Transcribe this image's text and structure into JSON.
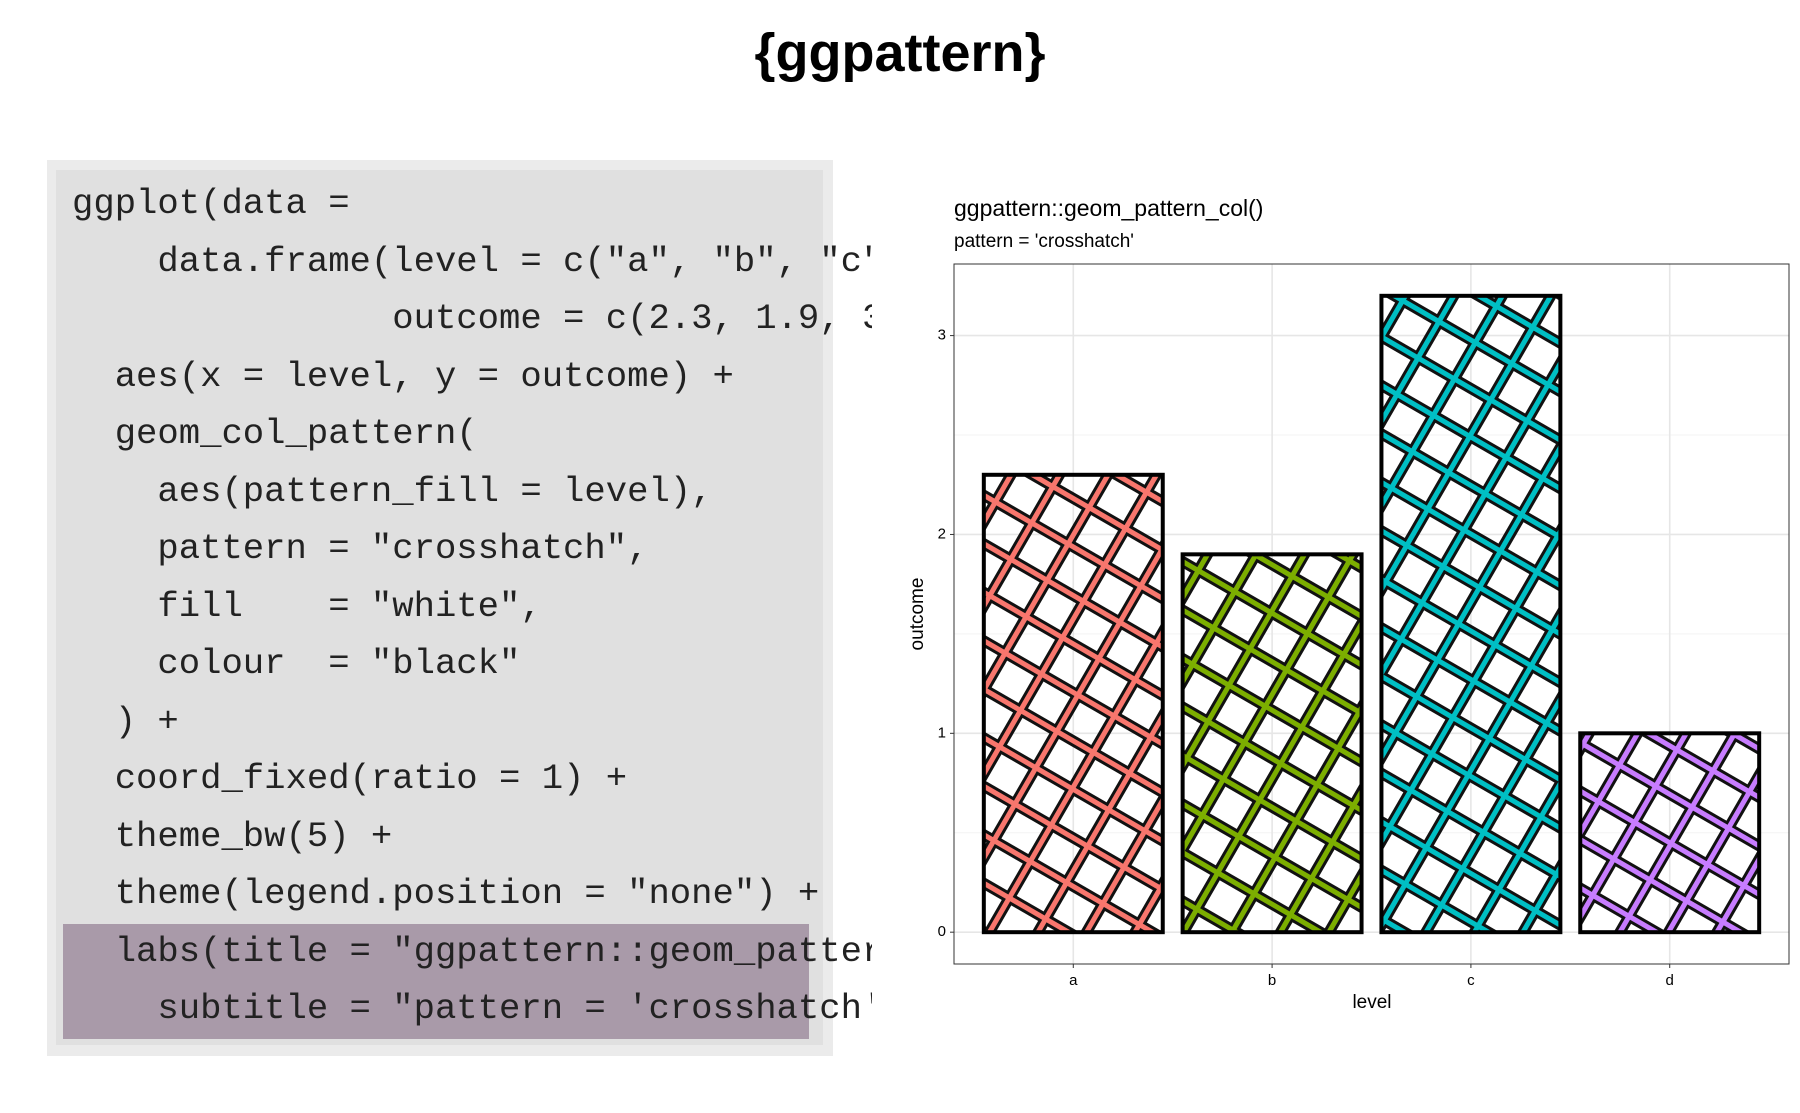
{
  "title": "{ggpattern}",
  "code_lines": [
    "ggplot(data =",
    "    data.frame(level = c(\"a\", \"b\", \"c\"",
    "               outcome = c(2.3, 1.9, 3",
    "  aes(x = level, y = outcome) +",
    "  geom_col_pattern(",
    "    aes(pattern_fill = level),",
    "    pattern = \"crosshatch\",",
    "    fill    = \"white\",",
    "    colour  = \"black\"",
    "  ) +",
    "  coord_fixed(ratio = 1) +",
    "  theme_bw(5) +",
    "  theme(legend.position = \"none\") +",
    "  labs(title = \"ggpattern::geom_patter",
    "    subtitle = \"pattern = 'crosshatch'"
  ],
  "chart_data": {
    "type": "bar",
    "title": "ggpattern::geom_pattern_col()",
    "subtitle": "pattern = 'crosshatch'",
    "x_label": "level",
    "y_label": "outcome",
    "categories": [
      "a",
      "b",
      "c",
      "d"
    ],
    "values": [
      2.3,
      1.9,
      3.2,
      1.0
    ],
    "colors": [
      "#F8766D",
      "#7CAE00",
      "#00BFC4",
      "#C77CFF"
    ],
    "ylim": [
      -0.16,
      3.36
    ],
    "yticks": [
      0,
      1,
      2,
      3
    ],
    "grid": true
  }
}
